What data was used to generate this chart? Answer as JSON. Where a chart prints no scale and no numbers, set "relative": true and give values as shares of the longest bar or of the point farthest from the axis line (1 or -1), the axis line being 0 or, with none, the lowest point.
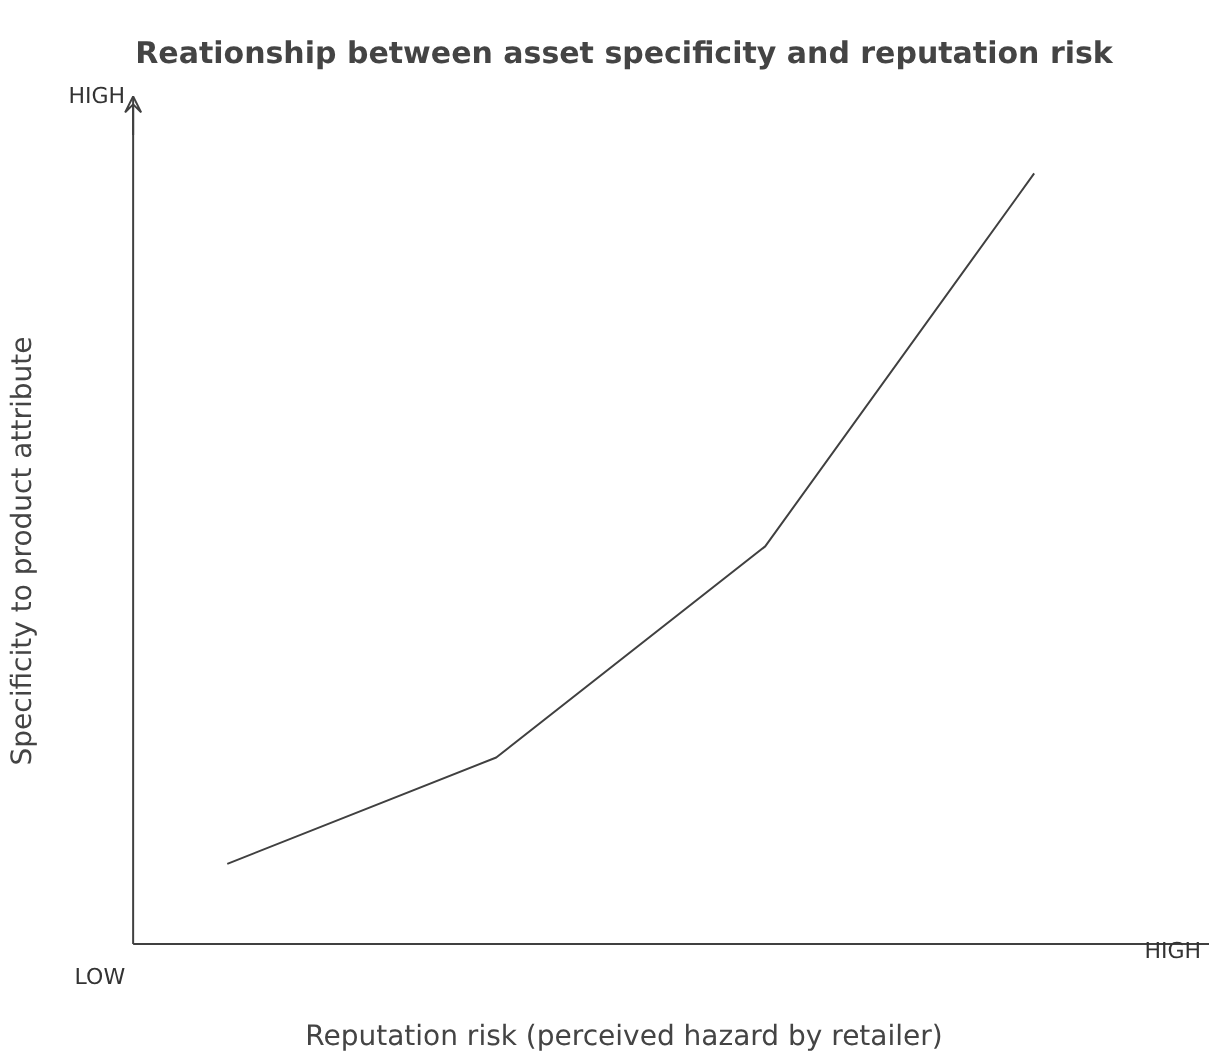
{
  "chart_data": {
    "type": "line",
    "title": "Reationship between asset specificity and reputation risk",
    "xlabel": "Reputation risk (perceived hazard by retailer)",
    "ylabel": "Specificity to product attribute",
    "relative": true,
    "categories": [
      null,
      null,
      null,
      null
    ],
    "series": [
      {
        "color": "#404040",
        "values": [
          0.104,
          0.242,
          0.516,
          1.0
        ]
      }
    ],
    "annotations": [
      "HIGH",
      "LOW",
      "HIGH"
    ],
    "marker": "none",
    "line_style": "solid"
  }
}
